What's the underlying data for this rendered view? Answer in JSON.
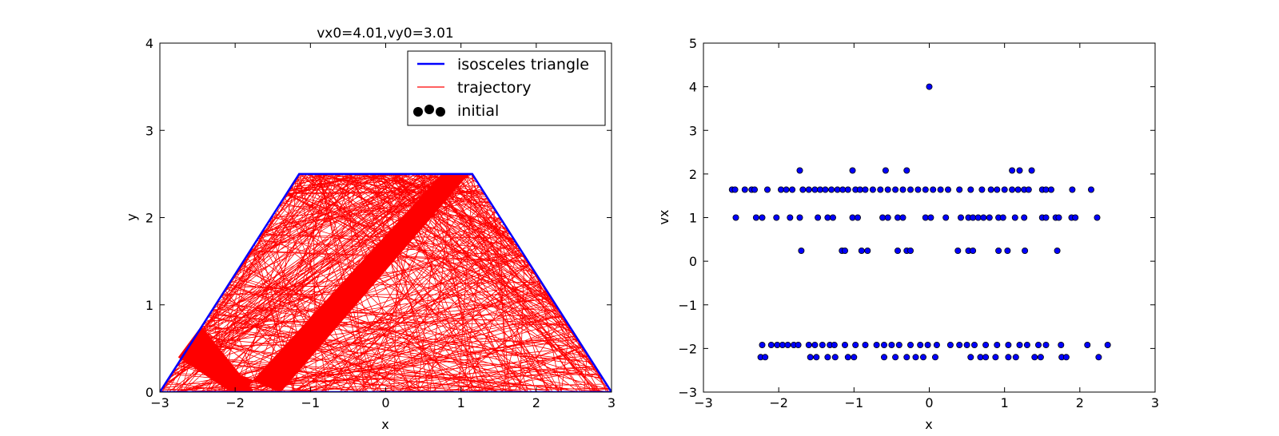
{
  "chart_data": [
    {
      "type": "line",
      "title": "vx0=4.01,vy0=3.01",
      "xlabel": "x",
      "ylabel": "y",
      "xlim": [
        -3,
        3
      ],
      "ylim": [
        0,
        4
      ],
      "xticks": [
        "−3",
        "−2",
        "−1",
        "0",
        "1",
        "2",
        "3"
      ],
      "yticks": [
        "0",
        "1",
        "2",
        "3",
        "4"
      ],
      "grid": false,
      "legend_position": "top-right",
      "series": [
        {
          "name": "isosceles triangle",
          "color": "#0000ff",
          "x": [
            -3,
            -1.15,
            1.15,
            3,
            -3
          ],
          "y": [
            0,
            2.5,
            2.5,
            0,
            0
          ]
        },
        {
          "name": "trajectory",
          "color": "#ff0000",
          "band_main": {
            "x": [
              -1.4,
              1.1,
              1.15,
              0.75,
              -1.9,
              -2.5
            ],
            "y": [
              0,
              2.5,
              2.5,
              2.5,
              0,
              0.4
            ]
          },
          "band_short": {
            "x": [
              -2.75,
              -2.45,
              -1.75,
              -2.05
            ],
            "y": [
              0.4,
              0.75,
              0,
              0
            ]
          }
        },
        {
          "name": "initial",
          "color": "#000000",
          "x": [
            0
          ],
          "y": [
            0
          ]
        }
      ]
    },
    {
      "type": "scatter",
      "title": "",
      "xlabel": "x",
      "ylabel": "vx",
      "xlim": [
        -3,
        3
      ],
      "ylim": [
        -3,
        5
      ],
      "xticks": [
        "−3",
        "−2",
        "−1",
        "0",
        "1",
        "2",
        "3"
      ],
      "yticks": [
        "−3",
        "−2",
        "−1",
        "0",
        "1",
        "2",
        "3",
        "4",
        "5"
      ],
      "grid": false,
      "series": [
        {
          "color": "#0000ff",
          "points": [
            [
              0,
              4
            ],
            [
              -1.72,
              2.08
            ],
            [
              -1.02,
              2.08
            ],
            [
              -0.58,
              2.08
            ],
            [
              -0.3,
              2.08
            ],
            [
              1.1,
              2.08
            ],
            [
              1.2,
              2.08
            ],
            [
              1.36,
              2.08
            ],
            [
              -2.62,
              1.64
            ],
            [
              -2.58,
              1.64
            ],
            [
              -2.45,
              1.64
            ],
            [
              -2.36,
              1.64
            ],
            [
              -2.32,
              1.64
            ],
            [
              -2.15,
              1.64
            ],
            [
              -1.97,
              1.64
            ],
            [
              -1.9,
              1.64
            ],
            [
              -1.82,
              1.64
            ],
            [
              -1.68,
              1.64
            ],
            [
              -1.6,
              1.64
            ],
            [
              -1.52,
              1.64
            ],
            [
              -1.45,
              1.64
            ],
            [
              -1.38,
              1.64
            ],
            [
              -1.3,
              1.64
            ],
            [
              -1.22,
              1.64
            ],
            [
              -1.15,
              1.64
            ],
            [
              -1.08,
              1.64
            ],
            [
              -0.98,
              1.64
            ],
            [
              -0.92,
              1.64
            ],
            [
              -0.85,
              1.64
            ],
            [
              -0.75,
              1.64
            ],
            [
              -0.65,
              1.64
            ],
            [
              -0.55,
              1.64
            ],
            [
              -0.45,
              1.64
            ],
            [
              -0.35,
              1.64
            ],
            [
              -0.25,
              1.64
            ],
            [
              -0.15,
              1.64
            ],
            [
              -0.05,
              1.64
            ],
            [
              0.05,
              1.64
            ],
            [
              0.15,
              1.64
            ],
            [
              0.25,
              1.64
            ],
            [
              0.4,
              1.64
            ],
            [
              0.55,
              1.64
            ],
            [
              0.7,
              1.64
            ],
            [
              0.82,
              1.64
            ],
            [
              0.9,
              1.64
            ],
            [
              1.0,
              1.64
            ],
            [
              1.1,
              1.64
            ],
            [
              1.18,
              1.64
            ],
            [
              1.26,
              1.64
            ],
            [
              1.32,
              1.64
            ],
            [
              1.5,
              1.64
            ],
            [
              1.55,
              1.64
            ],
            [
              1.62,
              1.64
            ],
            [
              1.9,
              1.64
            ],
            [
              2.15,
              1.64
            ],
            [
              -2.57,
              1.0
            ],
            [
              -2.3,
              1.0
            ],
            [
              -2.22,
              1.0
            ],
            [
              -2.03,
              1.0
            ],
            [
              -1.85,
              1.0
            ],
            [
              -1.72,
              1.0
            ],
            [
              -1.48,
              1.0
            ],
            [
              -1.35,
              1.0
            ],
            [
              -1.28,
              1.0
            ],
            [
              -1.02,
              1.0
            ],
            [
              -0.95,
              1.0
            ],
            [
              -0.62,
              1.0
            ],
            [
              -0.55,
              1.0
            ],
            [
              -0.42,
              1.0
            ],
            [
              -0.35,
              1.0
            ],
            [
              -0.05,
              1.0
            ],
            [
              0.02,
              1.0
            ],
            [
              0.22,
              1.0
            ],
            [
              0.42,
              1.0
            ],
            [
              0.52,
              1.0
            ],
            [
              0.58,
              1.0
            ],
            [
              0.65,
              1.0
            ],
            [
              0.72,
              1.0
            ],
            [
              0.8,
              1.0
            ],
            [
              0.92,
              1.0
            ],
            [
              0.98,
              1.0
            ],
            [
              1.14,
              1.0
            ],
            [
              1.26,
              1.0
            ],
            [
              1.5,
              1.0
            ],
            [
              1.55,
              1.0
            ],
            [
              1.68,
              1.0
            ],
            [
              1.72,
              1.0
            ],
            [
              1.89,
              1.0
            ],
            [
              1.94,
              1.0
            ],
            [
              2.23,
              1.0
            ],
            [
              -1.7,
              0.24
            ],
            [
              -1.16,
              0.24
            ],
            [
              -1.12,
              0.24
            ],
            [
              -0.9,
              0.24
            ],
            [
              -0.82,
              0.24
            ],
            [
              -0.42,
              0.24
            ],
            [
              -0.3,
              0.24
            ],
            [
              -0.25,
              0.24
            ],
            [
              0.38,
              0.24
            ],
            [
              0.52,
              0.24
            ],
            [
              0.58,
              0.24
            ],
            [
              0.92,
              0.24
            ],
            [
              1.04,
              0.24
            ],
            [
              1.27,
              0.24
            ],
            [
              1.7,
              0.24
            ],
            [
              -2.22,
              -1.92
            ],
            [
              -2.1,
              -1.92
            ],
            [
              -2.02,
              -1.92
            ],
            [
              -1.95,
              -1.92
            ],
            [
              -1.88,
              -1.92
            ],
            [
              -1.8,
              -1.92
            ],
            [
              -1.74,
              -1.92
            ],
            [
              -1.6,
              -1.92
            ],
            [
              -1.52,
              -1.92
            ],
            [
              -1.42,
              -1.92
            ],
            [
              -1.32,
              -1.92
            ],
            [
              -1.26,
              -1.92
            ],
            [
              -1.12,
              -1.92
            ],
            [
              -0.98,
              -1.92
            ],
            [
              -0.85,
              -1.92
            ],
            [
              -0.7,
              -1.92
            ],
            [
              -0.6,
              -1.92
            ],
            [
              -0.5,
              -1.92
            ],
            [
              -0.4,
              -1.92
            ],
            [
              -0.25,
              -1.92
            ],
            [
              -0.12,
              -1.92
            ],
            [
              -0.02,
              -1.92
            ],
            [
              0.1,
              -1.92
            ],
            [
              0.28,
              -1.92
            ],
            [
              0.4,
              -1.92
            ],
            [
              0.5,
              -1.92
            ],
            [
              0.6,
              -1.92
            ],
            [
              0.75,
              -1.92
            ],
            [
              0.9,
              -1.92
            ],
            [
              1.05,
              -1.92
            ],
            [
              1.2,
              -1.92
            ],
            [
              1.3,
              -1.92
            ],
            [
              1.45,
              -1.92
            ],
            [
              1.55,
              -1.92
            ],
            [
              1.75,
              -1.92
            ],
            [
              2.1,
              -1.92
            ],
            [
              2.37,
              -1.92
            ],
            [
              -2.24,
              -2.2
            ],
            [
              -2.18,
              -2.2
            ],
            [
              -1.58,
              -2.2
            ],
            [
              -1.5,
              -2.2
            ],
            [
              -1.35,
              -2.2
            ],
            [
              -1.25,
              -2.2
            ],
            [
              -1.08,
              -2.2
            ],
            [
              -1.0,
              -2.2
            ],
            [
              -0.6,
              -2.2
            ],
            [
              -0.45,
              -2.2
            ],
            [
              -0.3,
              -2.2
            ],
            [
              -0.18,
              -2.2
            ],
            [
              -0.08,
              -2.2
            ],
            [
              0.08,
              -2.2
            ],
            [
              0.55,
              -2.2
            ],
            [
              0.68,
              -2.2
            ],
            [
              0.75,
              -2.2
            ],
            [
              0.88,
              -2.2
            ],
            [
              1.05,
              -2.2
            ],
            [
              1.15,
              -2.2
            ],
            [
              1.4,
              -2.2
            ],
            [
              1.48,
              -2.2
            ],
            [
              1.76,
              -2.2
            ],
            [
              1.82,
              -2.2
            ],
            [
              2.25,
              -2.2
            ]
          ]
        }
      ]
    }
  ]
}
